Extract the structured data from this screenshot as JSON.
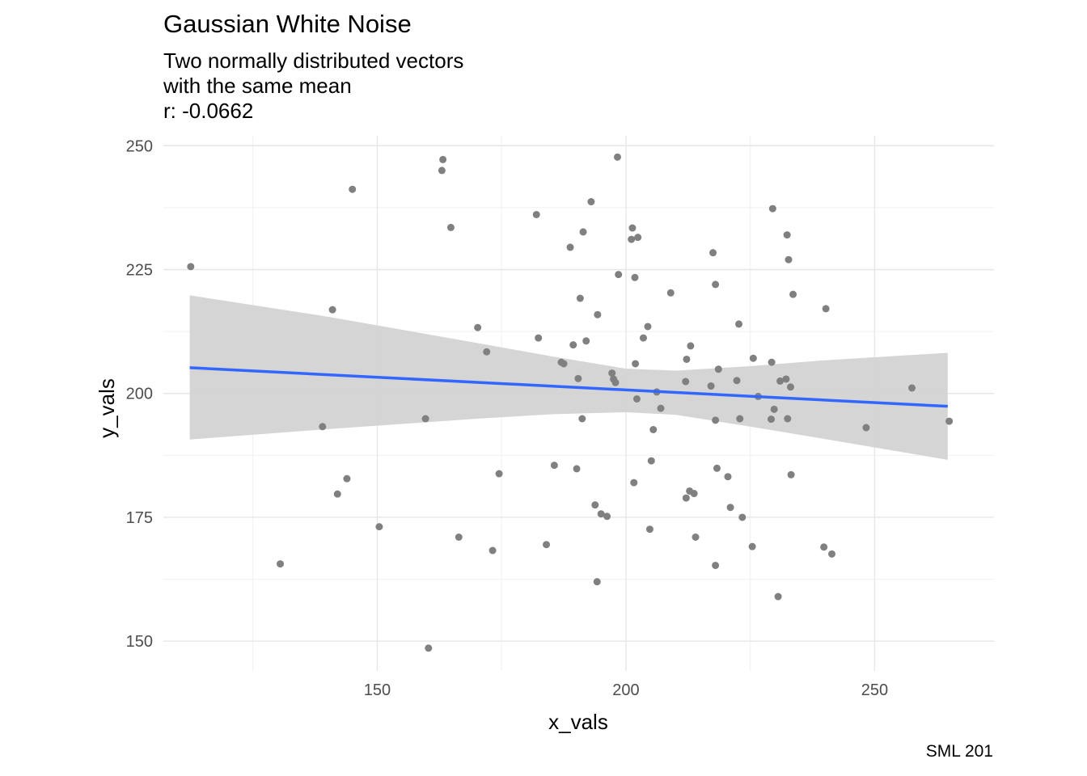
{
  "chart_data": {
    "type": "scatter",
    "title": "Gaussian White Noise",
    "subtitle_lines": [
      "Two normally distributed vectors",
      "with the same mean",
      "r: -0.0662"
    ],
    "caption": "SML 201",
    "xlabel": "x_vals",
    "ylabel": "y_vals",
    "xlim": [
      107,
      274
    ],
    "ylim": [
      144,
      252
    ],
    "x_ticks": [
      150,
      200,
      250
    ],
    "y_ticks": [
      150,
      175,
      200,
      225,
      250
    ],
    "grid": true,
    "point_color": "#808080",
    "smooth": {
      "method": "linear",
      "color": "#3366FF",
      "ribbon_color": "#D3D3D3",
      "line": [
        [
          112.3,
          205.2
        ],
        [
          264.7,
          197.4
        ]
      ],
      "ribbon_upper": [
        [
          112.3,
          219.8
        ],
        [
          140,
          215.5
        ],
        [
          170,
          210.2
        ],
        [
          185,
          207.5
        ],
        [
          200,
          205.0
        ],
        [
          210,
          204.6
        ],
        [
          225,
          205.5
        ],
        [
          240,
          206.7
        ],
        [
          264.7,
          208.2
        ]
      ],
      "ribbon_lower": [
        [
          112.3,
          190.7
        ],
        [
          140,
          192.8
        ],
        [
          170,
          194.9
        ],
        [
          185,
          195.8
        ],
        [
          200,
          196.2
        ],
        [
          210,
          195.7
        ],
        [
          225,
          193.3
        ],
        [
          240,
          190.8
        ],
        [
          264.7,
          186.6
        ]
      ]
    },
    "points": [
      [
        112.5,
        225.6
      ],
      [
        130.5,
        165.6
      ],
      [
        139.0,
        193.3
      ],
      [
        141.0,
        216.9
      ],
      [
        142.0,
        179.7
      ],
      [
        143.9,
        182.8
      ],
      [
        145.0,
        241.2
      ],
      [
        150.4,
        173.1
      ],
      [
        159.7,
        194.9
      ],
      [
        160.3,
        148.6
      ],
      [
        163.0,
        245.0
      ],
      [
        163.2,
        247.2
      ],
      [
        164.8,
        233.5
      ],
      [
        166.4,
        171.0
      ],
      [
        170.2,
        213.3
      ],
      [
        172.0,
        208.4
      ],
      [
        173.2,
        168.3
      ],
      [
        174.5,
        183.8
      ],
      [
        182.0,
        236.1
      ],
      [
        182.4,
        211.2
      ],
      [
        184.0,
        169.5
      ],
      [
        185.6,
        185.5
      ],
      [
        187.0,
        206.3
      ],
      [
        187.5,
        206.0
      ],
      [
        188.8,
        229.5
      ],
      [
        189.4,
        209.8
      ],
      [
        190.1,
        184.8
      ],
      [
        190.4,
        203.0
      ],
      [
        190.8,
        219.2
      ],
      [
        191.2,
        194.9
      ],
      [
        191.4,
        232.6
      ],
      [
        192.0,
        210.6
      ],
      [
        193.0,
        238.7
      ],
      [
        193.8,
        177.5
      ],
      [
        194.2,
        162.0
      ],
      [
        194.3,
        215.9
      ],
      [
        195.0,
        175.7
      ],
      [
        196.2,
        175.2
      ],
      [
        197.2,
        204.1
      ],
      [
        197.5,
        202.9
      ],
      [
        197.9,
        202.2
      ],
      [
        198.3,
        247.7
      ],
      [
        198.5,
        224.0
      ],
      [
        201.1,
        231.1
      ],
      [
        201.3,
        233.4
      ],
      [
        201.6,
        182.0
      ],
      [
        201.8,
        223.4
      ],
      [
        201.9,
        206.0
      ],
      [
        202.2,
        198.9
      ],
      [
        202.4,
        231.5
      ],
      [
        203.5,
        211.2
      ],
      [
        204.4,
        213.5
      ],
      [
        204.8,
        172.6
      ],
      [
        205.1,
        186.4
      ],
      [
        205.5,
        192.7
      ],
      [
        206.2,
        200.3
      ],
      [
        207.0,
        197.0
      ],
      [
        209.0,
        220.3
      ],
      [
        212.0,
        202.4
      ],
      [
        212.1,
        178.9
      ],
      [
        212.2,
        206.9
      ],
      [
        212.8,
        180.3
      ],
      [
        213.0,
        209.6
      ],
      [
        213.7,
        179.8
      ],
      [
        214.0,
        171.0
      ],
      [
        217.1,
        201.5
      ],
      [
        217.5,
        228.4
      ],
      [
        218.0,
        194.6
      ],
      [
        218.0,
        222.0
      ],
      [
        218.0,
        165.3
      ],
      [
        218.3,
        184.9
      ],
      [
        218.6,
        204.9
      ],
      [
        220.5,
        183.2
      ],
      [
        221.0,
        177.0
      ],
      [
        222.3,
        202.6
      ],
      [
        222.7,
        214.0
      ],
      [
        222.9,
        194.9
      ],
      [
        223.4,
        175.0
      ],
      [
        225.4,
        169.1
      ],
      [
        225.6,
        207.1
      ],
      [
        226.6,
        199.4
      ],
      [
        229.2,
        194.8
      ],
      [
        229.3,
        206.3
      ],
      [
        229.5,
        237.3
      ],
      [
        229.8,
        196.8
      ],
      [
        230.6,
        159.0
      ],
      [
        231.0,
        202.5
      ],
      [
        232.2,
        202.9
      ],
      [
        232.4,
        232.0
      ],
      [
        232.5,
        194.9
      ],
      [
        232.7,
        227.0
      ],
      [
        233.1,
        201.3
      ],
      [
        233.2,
        183.6
      ],
      [
        233.6,
        220.0
      ],
      [
        239.8,
        169.0
      ],
      [
        240.2,
        217.1
      ],
      [
        241.4,
        167.6
      ],
      [
        248.3,
        193.1
      ],
      [
        257.5,
        201.1
      ],
      [
        265.0,
        194.4
      ]
    ]
  }
}
